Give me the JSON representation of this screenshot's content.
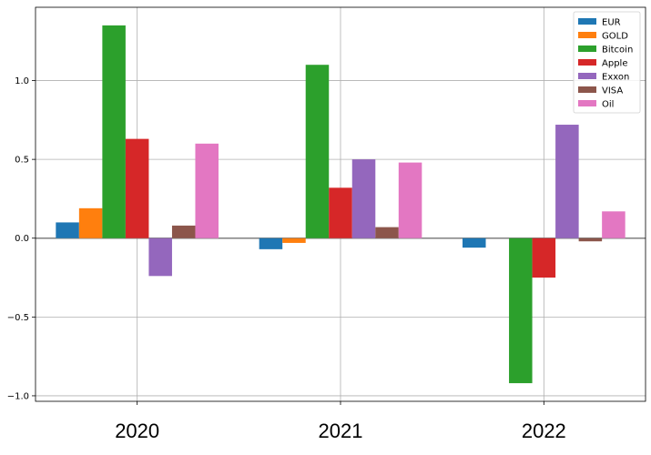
{
  "chart_data": {
    "type": "bar",
    "categories": [
      "2020",
      "2021",
      "2022"
    ],
    "series": [
      {
        "name": "EUR",
        "color": "#1f77b4",
        "values": [
          0.1,
          -0.07,
          -0.06
        ]
      },
      {
        "name": "GOLD",
        "color": "#ff7f0e",
        "values": [
          0.19,
          -0.03,
          0.0
        ]
      },
      {
        "name": "Bitcoin",
        "color": "#2ca02c",
        "values": [
          1.35,
          1.1,
          -0.92
        ]
      },
      {
        "name": "Apple",
        "color": "#d62728",
        "values": [
          0.63,
          0.32,
          -0.25
        ]
      },
      {
        "name": "Exxon",
        "color": "#9467bd",
        "values": [
          -0.24,
          0.5,
          0.72
        ]
      },
      {
        "name": "VISA",
        "color": "#8c564b",
        "values": [
          0.08,
          0.07,
          -0.02
        ]
      },
      {
        "name": "Oil",
        "color": "#e377c2",
        "values": [
          0.6,
          0.48,
          0.17
        ]
      }
    ],
    "yticks": [
      "1.0",
      "0.5",
      "0.0",
      "−0.5",
      "−1.0"
    ],
    "ytick_values": [
      1.0,
      0.5,
      0.0,
      -0.5,
      -1.0
    ],
    "ylim": [
      -1.035,
      1.465
    ],
    "grid": true,
    "legend_position": "top-right",
    "title": "",
    "xlabel": "",
    "ylabel": ""
  }
}
